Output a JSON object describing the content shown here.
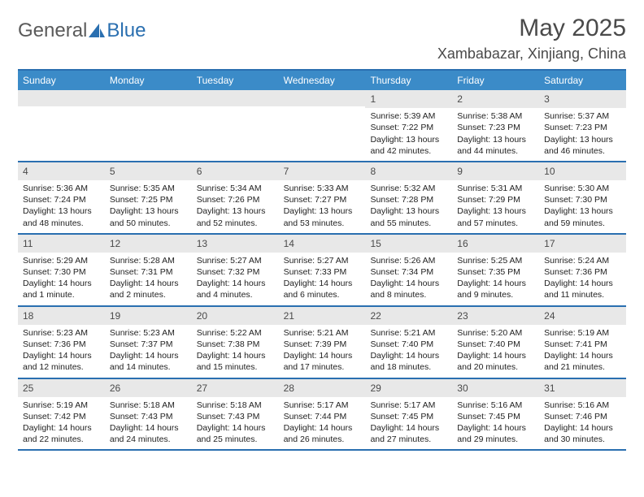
{
  "logo": {
    "text1": "General",
    "text2": "Blue"
  },
  "title": "May 2025",
  "location": "Xambabazar, Xinjiang, China",
  "colors": {
    "brand_blue": "#3b8bc8",
    "rule_blue": "#2a6fb0",
    "header_gray": "#e8e8e8",
    "text": "#222222",
    "title_text": "#4a4a4a",
    "white": "#ffffff"
  },
  "dow": [
    "Sunday",
    "Monday",
    "Tuesday",
    "Wednesday",
    "Thursday",
    "Friday",
    "Saturday"
  ],
  "weeks": [
    [
      {
        "n": "",
        "sr": "",
        "ss": "",
        "dl": ""
      },
      {
        "n": "",
        "sr": "",
        "ss": "",
        "dl": ""
      },
      {
        "n": "",
        "sr": "",
        "ss": "",
        "dl": ""
      },
      {
        "n": "",
        "sr": "",
        "ss": "",
        "dl": ""
      },
      {
        "n": "1",
        "sr": "Sunrise: 5:39 AM",
        "ss": "Sunset: 7:22 PM",
        "dl": "Daylight: 13 hours and 42 minutes."
      },
      {
        "n": "2",
        "sr": "Sunrise: 5:38 AM",
        "ss": "Sunset: 7:23 PM",
        "dl": "Daylight: 13 hours and 44 minutes."
      },
      {
        "n": "3",
        "sr": "Sunrise: 5:37 AM",
        "ss": "Sunset: 7:23 PM",
        "dl": "Daylight: 13 hours and 46 minutes."
      }
    ],
    [
      {
        "n": "4",
        "sr": "Sunrise: 5:36 AM",
        "ss": "Sunset: 7:24 PM",
        "dl": "Daylight: 13 hours and 48 minutes."
      },
      {
        "n": "5",
        "sr": "Sunrise: 5:35 AM",
        "ss": "Sunset: 7:25 PM",
        "dl": "Daylight: 13 hours and 50 minutes."
      },
      {
        "n": "6",
        "sr": "Sunrise: 5:34 AM",
        "ss": "Sunset: 7:26 PM",
        "dl": "Daylight: 13 hours and 52 minutes."
      },
      {
        "n": "7",
        "sr": "Sunrise: 5:33 AM",
        "ss": "Sunset: 7:27 PM",
        "dl": "Daylight: 13 hours and 53 minutes."
      },
      {
        "n": "8",
        "sr": "Sunrise: 5:32 AM",
        "ss": "Sunset: 7:28 PM",
        "dl": "Daylight: 13 hours and 55 minutes."
      },
      {
        "n": "9",
        "sr": "Sunrise: 5:31 AM",
        "ss": "Sunset: 7:29 PM",
        "dl": "Daylight: 13 hours and 57 minutes."
      },
      {
        "n": "10",
        "sr": "Sunrise: 5:30 AM",
        "ss": "Sunset: 7:30 PM",
        "dl": "Daylight: 13 hours and 59 minutes."
      }
    ],
    [
      {
        "n": "11",
        "sr": "Sunrise: 5:29 AM",
        "ss": "Sunset: 7:30 PM",
        "dl": "Daylight: 14 hours and 1 minute."
      },
      {
        "n": "12",
        "sr": "Sunrise: 5:28 AM",
        "ss": "Sunset: 7:31 PM",
        "dl": "Daylight: 14 hours and 2 minutes."
      },
      {
        "n": "13",
        "sr": "Sunrise: 5:27 AM",
        "ss": "Sunset: 7:32 PM",
        "dl": "Daylight: 14 hours and 4 minutes."
      },
      {
        "n": "14",
        "sr": "Sunrise: 5:27 AM",
        "ss": "Sunset: 7:33 PM",
        "dl": "Daylight: 14 hours and 6 minutes."
      },
      {
        "n": "15",
        "sr": "Sunrise: 5:26 AM",
        "ss": "Sunset: 7:34 PM",
        "dl": "Daylight: 14 hours and 8 minutes."
      },
      {
        "n": "16",
        "sr": "Sunrise: 5:25 AM",
        "ss": "Sunset: 7:35 PM",
        "dl": "Daylight: 14 hours and 9 minutes."
      },
      {
        "n": "17",
        "sr": "Sunrise: 5:24 AM",
        "ss": "Sunset: 7:36 PM",
        "dl": "Daylight: 14 hours and 11 minutes."
      }
    ],
    [
      {
        "n": "18",
        "sr": "Sunrise: 5:23 AM",
        "ss": "Sunset: 7:36 PM",
        "dl": "Daylight: 14 hours and 12 minutes."
      },
      {
        "n": "19",
        "sr": "Sunrise: 5:23 AM",
        "ss": "Sunset: 7:37 PM",
        "dl": "Daylight: 14 hours and 14 minutes."
      },
      {
        "n": "20",
        "sr": "Sunrise: 5:22 AM",
        "ss": "Sunset: 7:38 PM",
        "dl": "Daylight: 14 hours and 15 minutes."
      },
      {
        "n": "21",
        "sr": "Sunrise: 5:21 AM",
        "ss": "Sunset: 7:39 PM",
        "dl": "Daylight: 14 hours and 17 minutes."
      },
      {
        "n": "22",
        "sr": "Sunrise: 5:21 AM",
        "ss": "Sunset: 7:40 PM",
        "dl": "Daylight: 14 hours and 18 minutes."
      },
      {
        "n": "23",
        "sr": "Sunrise: 5:20 AM",
        "ss": "Sunset: 7:40 PM",
        "dl": "Daylight: 14 hours and 20 minutes."
      },
      {
        "n": "24",
        "sr": "Sunrise: 5:19 AM",
        "ss": "Sunset: 7:41 PM",
        "dl": "Daylight: 14 hours and 21 minutes."
      }
    ],
    [
      {
        "n": "25",
        "sr": "Sunrise: 5:19 AM",
        "ss": "Sunset: 7:42 PM",
        "dl": "Daylight: 14 hours and 22 minutes."
      },
      {
        "n": "26",
        "sr": "Sunrise: 5:18 AM",
        "ss": "Sunset: 7:43 PM",
        "dl": "Daylight: 14 hours and 24 minutes."
      },
      {
        "n": "27",
        "sr": "Sunrise: 5:18 AM",
        "ss": "Sunset: 7:43 PM",
        "dl": "Daylight: 14 hours and 25 minutes."
      },
      {
        "n": "28",
        "sr": "Sunrise: 5:17 AM",
        "ss": "Sunset: 7:44 PM",
        "dl": "Daylight: 14 hours and 26 minutes."
      },
      {
        "n": "29",
        "sr": "Sunrise: 5:17 AM",
        "ss": "Sunset: 7:45 PM",
        "dl": "Daylight: 14 hours and 27 minutes."
      },
      {
        "n": "30",
        "sr": "Sunrise: 5:16 AM",
        "ss": "Sunset: 7:45 PM",
        "dl": "Daylight: 14 hours and 29 minutes."
      },
      {
        "n": "31",
        "sr": "Sunrise: 5:16 AM",
        "ss": "Sunset: 7:46 PM",
        "dl": "Daylight: 14 hours and 30 minutes."
      }
    ]
  ]
}
